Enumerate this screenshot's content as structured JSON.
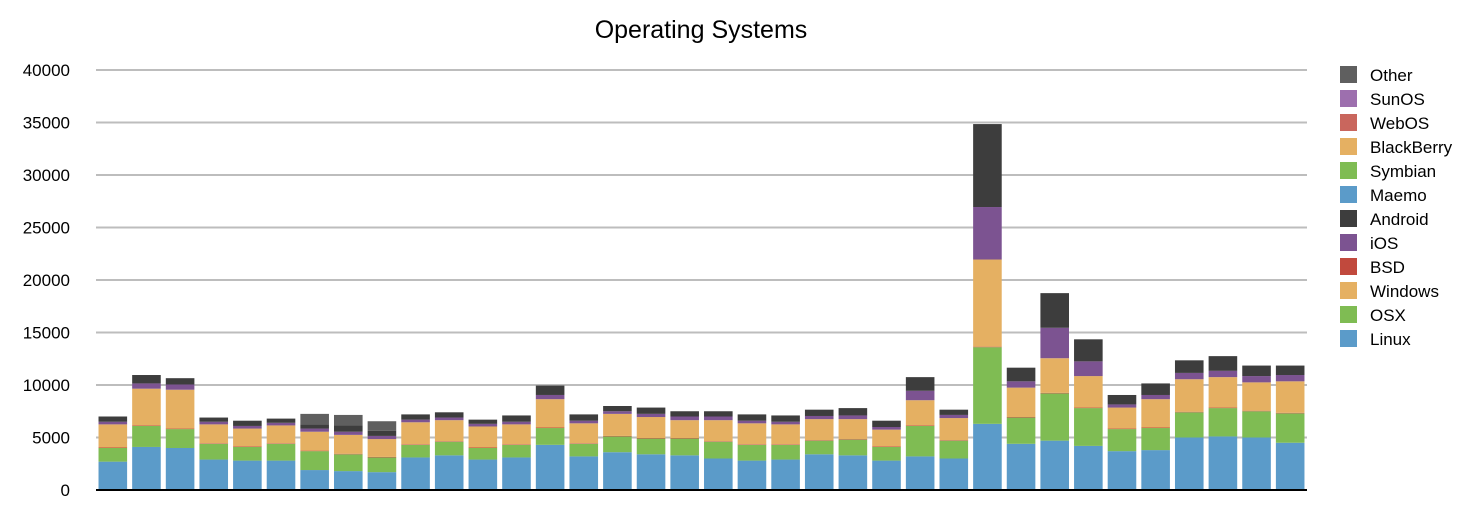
{
  "chart_data": {
    "type": "bar",
    "stacked": true,
    "title": "Operating Systems",
    "xlabel": "",
    "ylabel": "",
    "ylim": [
      0,
      40000
    ],
    "yticks": [
      0,
      5000,
      10000,
      15000,
      20000,
      25000,
      30000,
      35000,
      40000
    ],
    "grid": true,
    "legend_position": "right",
    "legend_order": [
      "Other",
      "SunOS",
      "WebOS",
      "BlackBerry",
      "Symbian",
      "Maemo",
      "Android",
      "iOS",
      "BSD",
      "Windows",
      "OSX",
      "Linux"
    ],
    "series": [
      {
        "name": "Linux",
        "color": "#5b9bc9",
        "values": [
          2700,
          4100,
          4000,
          2900,
          2800,
          2800,
          1900,
          1800,
          1700,
          3100,
          3300,
          2900,
          3100,
          4300,
          3200,
          3600,
          3400,
          3300,
          3000,
          2800,
          2900,
          3400,
          3300,
          2800,
          3200,
          3000,
          6300,
          4400,
          4700,
          4200,
          3700,
          3800,
          5000,
          5100,
          5000,
          4500
        ]
      },
      {
        "name": "OSX",
        "color": "#7fbc53",
        "values": [
          1300,
          2000,
          1800,
          1500,
          1300,
          1600,
          1800,
          1600,
          1400,
          1200,
          1300,
          1100,
          1200,
          1600,
          1200,
          1500,
          1500,
          1600,
          1600,
          1500,
          1400,
          1300,
          1500,
          1300,
          2900,
          1700,
          7300,
          2500,
          4500,
          3600,
          2100,
          2100,
          2400,
          2700,
          2500,
          2800
        ]
      },
      {
        "name": "BSD",
        "color": "#c1493d",
        "values": [
          50,
          50,
          50,
          50,
          50,
          50,
          50,
          50,
          50,
          50,
          50,
          50,
          50,
          50,
          50,
          50,
          50,
          50,
          50,
          50,
          50,
          50,
          50,
          50,
          50,
          50,
          50,
          50,
          50,
          50,
          50,
          50,
          50,
          50,
          50,
          50
        ]
      },
      {
        "name": "Windows",
        "color": "#e5b062",
        "values": [
          2200,
          3500,
          3700,
          1800,
          1700,
          1700,
          1800,
          1800,
          1700,
          2100,
          2000,
          2000,
          1900,
          2700,
          1900,
          2100,
          2000,
          1700,
          2000,
          2000,
          1900,
          2000,
          1900,
          1600,
          2400,
          2100,
          8300,
          2800,
          3300,
          3000,
          2000,
          2700,
          3100,
          2900,
          2700,
          3000
        ]
      },
      {
        "name": "iOS",
        "color": "#7c5391",
        "values": [
          250,
          500,
          500,
          250,
          250,
          250,
          300,
          300,
          300,
          250,
          250,
          250,
          250,
          400,
          250,
          250,
          300,
          350,
          350,
          250,
          250,
          300,
          350,
          250,
          900,
          300,
          5000,
          600,
          2900,
          1400,
          300,
          400,
          600,
          600,
          600,
          600
        ]
      },
      {
        "name": "Android",
        "color": "#3d3d3d",
        "values": [
          500,
          800,
          600,
          400,
          500,
          400,
          400,
          600,
          500,
          500,
          500,
          400,
          600,
          900,
          600,
          500,
          600,
          500,
          500,
          600,
          600,
          600,
          700,
          600,
          1300,
          500,
          7900,
          1300,
          3300,
          2100,
          900,
          1100,
          1200,
          1400,
          1000,
          900
        ]
      },
      {
        "name": "Maemo",
        "color": "#5b9bc9",
        "values": [
          0,
          0,
          0,
          0,
          0,
          0,
          0,
          0,
          0,
          0,
          0,
          0,
          0,
          0,
          0,
          0,
          0,
          0,
          0,
          0,
          0,
          0,
          0,
          0,
          0,
          0,
          0,
          0,
          0,
          0,
          0,
          0,
          0,
          0,
          0,
          0
        ]
      },
      {
        "name": "Symbian",
        "color": "#7fbc53",
        "values": [
          0,
          0,
          0,
          0,
          0,
          0,
          0,
          0,
          0,
          0,
          0,
          0,
          0,
          0,
          0,
          0,
          0,
          0,
          0,
          0,
          0,
          0,
          0,
          0,
          0,
          0,
          0,
          0,
          0,
          0,
          0,
          0,
          0,
          0,
          0,
          0
        ]
      },
      {
        "name": "BlackBerry",
        "color": "#e5b062",
        "values": [
          0,
          0,
          0,
          0,
          0,
          0,
          0,
          0,
          0,
          0,
          0,
          0,
          0,
          0,
          0,
          0,
          0,
          0,
          0,
          0,
          0,
          0,
          0,
          0,
          0,
          0,
          0,
          0,
          0,
          0,
          0,
          0,
          0,
          0,
          0,
          0
        ]
      },
      {
        "name": "WebOS",
        "color": "#c9665d",
        "values": [
          0,
          0,
          0,
          0,
          0,
          0,
          0,
          0,
          0,
          0,
          0,
          0,
          0,
          0,
          0,
          0,
          0,
          0,
          0,
          0,
          0,
          0,
          0,
          0,
          0,
          0,
          0,
          0,
          0,
          0,
          0,
          0,
          0,
          0,
          0,
          0
        ]
      },
      {
        "name": "SunOS",
        "color": "#9d6fae",
        "values": [
          0,
          0,
          0,
          0,
          0,
          0,
          0,
          0,
          0,
          0,
          0,
          0,
          0,
          0,
          0,
          0,
          0,
          0,
          0,
          0,
          0,
          0,
          0,
          0,
          0,
          0,
          0,
          0,
          0,
          0,
          0,
          0,
          0,
          0,
          0,
          0
        ]
      },
      {
        "name": "Other",
        "color": "#5f5f5f",
        "values": [
          0,
          0,
          0,
          0,
          0,
          0,
          1000,
          1000,
          900,
          0,
          0,
          0,
          0,
          0,
          0,
          0,
          0,
          0,
          0,
          0,
          0,
          0,
          0,
          0,
          0,
          0,
          0,
          0,
          0,
          0,
          0,
          0,
          0,
          0,
          0,
          0
        ]
      }
    ]
  }
}
